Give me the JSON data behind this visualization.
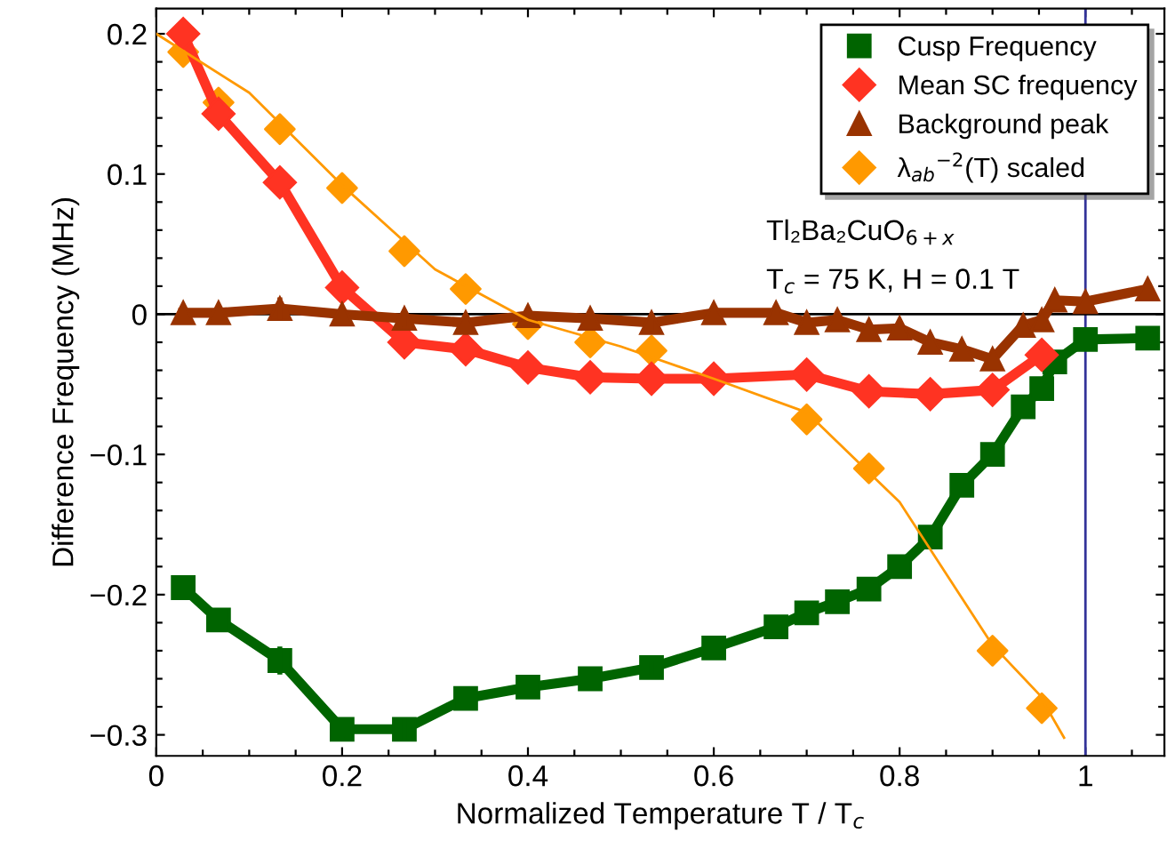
{
  "chart_data": {
    "type": "line",
    "xlabel": "Normalized Temperature T / T$_{c}$",
    "ylabel": "Difference Frequency (MHz)",
    "xlim": [
      0,
      1.085
    ],
    "ylim": [
      -0.315,
      0.218
    ],
    "xticks": [
      0,
      {
        "value": 0.05,
        "label": null
      },
      {
        "value": 0.1,
        "label": null
      },
      {
        "value": 0.15,
        "label": null
      },
      0.2,
      {
        "value": 0.25,
        "label": null
      },
      {
        "value": 0.3,
        "label": null
      },
      {
        "value": 0.35,
        "label": null
      },
      0.4,
      {
        "value": 0.45,
        "label": null
      },
      {
        "value": 0.5,
        "label": null
      },
      {
        "value": 0.55,
        "label": null
      },
      0.6,
      {
        "value": 0.65,
        "label": null
      },
      {
        "value": 0.7,
        "label": null
      },
      {
        "value": 0.75,
        "label": null
      },
      0.8,
      {
        "value": 0.85,
        "label": null
      },
      {
        "value": 0.9,
        "label": null
      },
      {
        "value": 0.95,
        "label": null
      },
      1,
      {
        "value": 1.05,
        "label": null
      }
    ],
    "yticks": [
      {
        "value": -0.3,
        "label": "−0.3"
      },
      {
        "value": -0.28,
        "label": null
      },
      {
        "value": -0.26,
        "label": null
      },
      {
        "value": -0.24,
        "label": null
      },
      {
        "value": -0.22,
        "label": null
      },
      {
        "value": -0.2,
        "label": "−0.2"
      },
      {
        "value": -0.18,
        "label": null
      },
      {
        "value": -0.16,
        "label": null
      },
      {
        "value": -0.14,
        "label": null
      },
      {
        "value": -0.12,
        "label": null
      },
      {
        "value": -0.1,
        "label": "−0.1"
      },
      {
        "value": -0.08,
        "label": null
      },
      {
        "value": -0.06,
        "label": null
      },
      {
        "value": -0.04,
        "label": null
      },
      {
        "value": -0.02,
        "label": null
      },
      0,
      {
        "value": 0.02,
        "label": null
      },
      {
        "value": 0.04,
        "label": null
      },
      {
        "value": 0.06,
        "label": null
      },
      {
        "value": 0.08,
        "label": null
      },
      0.1,
      {
        "value": 0.12,
        "label": null
      },
      {
        "value": 0.14,
        "label": null
      },
      {
        "value": 0.16,
        "label": null
      },
      {
        "value": 0.18,
        "label": null
      },
      0.2
    ],
    "grid": false,
    "legend": "top right",
    "ref_lines": [
      {
        "axis": "x",
        "value": 1,
        "color": "#333399"
      },
      {
        "axis": "y",
        "value": 0,
        "color": "#000000"
      }
    ],
    "annotations": [
      "Tl₂Ba₂CuO$_{6+x}$",
      "T$_{c}$ = 75 K, H = 0.1 T"
    ],
    "series": [
      {
        "name": "Cusp Frequency",
        "marker": "square",
        "color": "#006400",
        "x": [
          0.029,
          0.067,
          0.133,
          0.2,
          0.267,
          0.333,
          0.4,
          0.467,
          0.533,
          0.6,
          0.667,
          0.7,
          0.733,
          0.767,
          0.8,
          0.833,
          0.867,
          0.9,
          0.933,
          0.953,
          0.967,
          1.0,
          1.067
        ],
        "values": [
          -0.195,
          -0.218,
          -0.247,
          -0.296,
          -0.296,
          -0.274,
          -0.266,
          -0.26,
          -0.252,
          -0.238,
          -0.223,
          -0.213,
          -0.205,
          -0.196,
          -0.18,
          -0.159,
          -0.122,
          -0.1,
          -0.066,
          -0.053,
          -0.034,
          -0.018,
          -0.017
        ],
        "errors": [
          null,
          null,
          0.01,
          0.006,
          0.008,
          null,
          null,
          null,
          0.005,
          null,
          null,
          null,
          null,
          null,
          null,
          null,
          null,
          null,
          null,
          null,
          null,
          null,
          null
        ]
      },
      {
        "name": "Mean SC frequency",
        "marker": "diamond",
        "color": "#ff3322",
        "x": [
          0.029,
          0.067,
          0.133,
          0.2,
          0.267,
          0.333,
          0.4,
          0.467,
          0.533,
          0.6,
          0.7,
          0.767,
          0.833,
          0.9,
          0.953
        ],
        "values": [
          0.2,
          0.143,
          0.094,
          0.019,
          -0.02,
          -0.025,
          -0.038,
          -0.045,
          -0.046,
          -0.046,
          -0.043,
          -0.055,
          -0.057,
          -0.054,
          -0.029
        ]
      },
      {
        "name": "Background peak",
        "marker": "triangle",
        "color": "#993300",
        "x": [
          0.029,
          0.067,
          0.133,
          0.2,
          0.267,
          0.333,
          0.4,
          0.467,
          0.533,
          0.6,
          0.667,
          0.7,
          0.733,
          0.767,
          0.8,
          0.833,
          0.867,
          0.9,
          0.933,
          0.953,
          0.967,
          1.0,
          1.067
        ],
        "values": [
          0.001,
          0.001,
          0.004,
          0.0,
          -0.003,
          -0.006,
          -0.001,
          -0.003,
          -0.006,
          0.001,
          0.001,
          -0.006,
          -0.004,
          -0.011,
          -0.01,
          -0.02,
          -0.025,
          -0.032,
          -0.008,
          -0.004,
          0.01,
          0.009,
          0.018
        ],
        "errors": [
          null,
          null,
          0.008,
          null,
          0.006,
          null,
          null,
          null,
          0.006,
          null,
          null,
          null,
          null,
          null,
          null,
          null,
          null,
          null,
          null,
          null,
          null,
          null,
          null
        ]
      },
      {
        "name": "λ$_{ab}$$^{−2}$(T) scaled",
        "type": "scatter",
        "marker": "diamond",
        "color": "#ff9900",
        "x": [
          0.029,
          0.067,
          0.133,
          0.2,
          0.267,
          0.333,
          0.4,
          0.467,
          0.533,
          0.7,
          0.767,
          0.9,
          0.953
        ],
        "values": [
          0.187,
          0.151,
          0.132,
          0.09,
          0.045,
          0.018,
          -0.007,
          -0.02,
          -0.026,
          -0.075,
          -0.11,
          -0.24,
          -0.281
        ]
      },
      {
        "marker": "none",
        "color": "#ff9900",
        "x": [
          0,
          0.1,
          0.2,
          0.3,
          0.4,
          0.5,
          0.6,
          0.7,
          0.8,
          0.9,
          0.95,
          0.977
        ],
        "values": [
          0.2,
          0.158,
          0.092,
          0.032,
          -0.004,
          -0.023,
          -0.046,
          -0.07,
          -0.134,
          -0.236,
          -0.271,
          -0.302
        ]
      }
    ]
  }
}
